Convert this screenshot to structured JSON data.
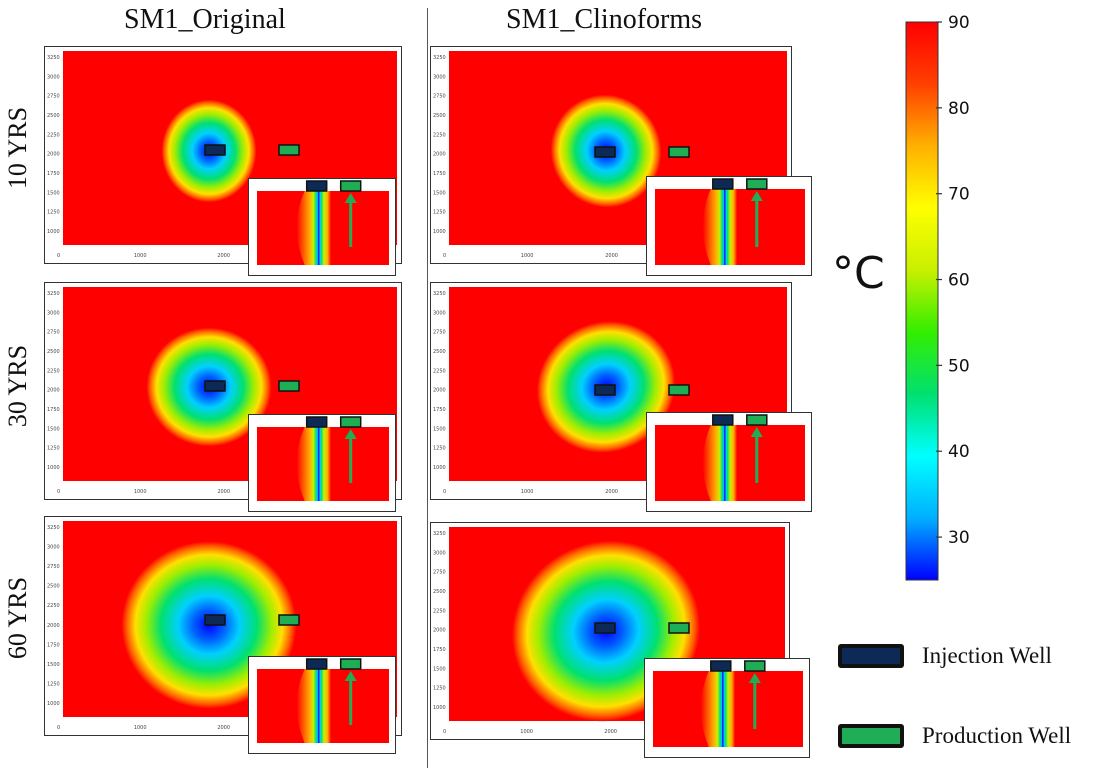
{
  "columns": [
    "SM1_Original",
    "SM1_Clinoforms"
  ],
  "rows": [
    "10 YRS",
    "30 YRS",
    "60 YRS"
  ],
  "unit": "°C",
  "colorbar": {
    "min": 25,
    "max": 90,
    "ticks": [
      "90",
      "80",
      "70",
      "60",
      "50",
      "40",
      "30"
    ],
    "tick_values": [
      90,
      80,
      70,
      60,
      50,
      40,
      30
    ],
    "colormap": [
      "#0000ff",
      "#00b0ff",
      "#00ffff",
      "#00e070",
      "#33ee00",
      "#c8f000",
      "#ffff00",
      "#ffb000",
      "#ff4000",
      "#ff0000"
    ]
  },
  "map_axis": {
    "x_ticks": [
      "1000",
      "2000"
    ],
    "y_ticks": [
      "3250",
      "3000",
      "2750",
      "2500",
      "2250",
      "2000",
      "1750",
      "1500",
      "1250",
      "1000"
    ]
  },
  "legend": [
    {
      "label": "Injection Well",
      "color": "#0d2a57"
    },
    {
      "label": "Production Well",
      "color": "#1fae55"
    }
  ]
}
